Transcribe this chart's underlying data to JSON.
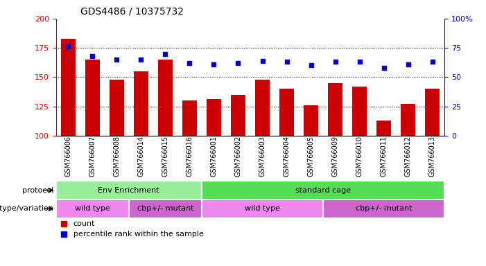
{
  "title": "GDS4486 / 10375732",
  "samples": [
    "GSM766006",
    "GSM766007",
    "GSM766008",
    "GSM766014",
    "GSM766015",
    "GSM766016",
    "GSM766001",
    "GSM766002",
    "GSM766003",
    "GSM766004",
    "GSM766005",
    "GSM766009",
    "GSM766010",
    "GSM766011",
    "GSM766012",
    "GSM766013"
  ],
  "counts": [
    183,
    165,
    148,
    155,
    165,
    130,
    131,
    135,
    148,
    140,
    126,
    145,
    142,
    113,
    127,
    140
  ],
  "percentiles": [
    76,
    68,
    65,
    65,
    70,
    62,
    61,
    62,
    64,
    63,
    60,
    63,
    63,
    58,
    61,
    63
  ],
  "ylim_left": [
    100,
    200
  ],
  "ylim_right": [
    0,
    100
  ],
  "yticks_left": [
    100,
    125,
    150,
    175,
    200
  ],
  "yticks_right": [
    0,
    25,
    50,
    75,
    100
  ],
  "bar_color": "#cc0000",
  "dot_color": "#0000cc",
  "protocol_groups": [
    {
      "label": "Env Enrichment",
      "start": 0,
      "end": 6,
      "color": "#99ee99"
    },
    {
      "label": "standard cage",
      "start": 6,
      "end": 16,
      "color": "#55dd55"
    }
  ],
  "genotype_groups": [
    {
      "label": "wild type",
      "start": 0,
      "end": 3,
      "color": "#ee88ee"
    },
    {
      "label": "cbp+/- mutant",
      "start": 3,
      "end": 6,
      "color": "#cc66cc"
    },
    {
      "label": "wild type",
      "start": 6,
      "end": 11,
      "color": "#ee88ee"
    },
    {
      "label": "cbp+/- mutant",
      "start": 11,
      "end": 16,
      "color": "#cc66cc"
    }
  ],
  "legend_items": [
    {
      "label": "count",
      "color": "#cc0000"
    },
    {
      "label": "percentile rank within the sample",
      "color": "#0000cc"
    }
  ]
}
